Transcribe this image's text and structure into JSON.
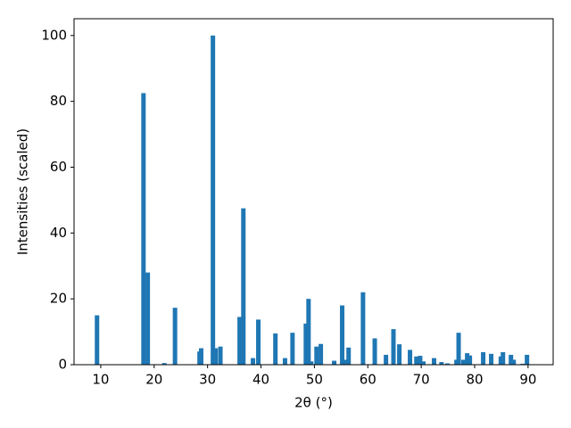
{
  "chart_data": {
    "type": "bar",
    "xlabel": "2θ (°)",
    "ylabel": "Intensities (scaled)",
    "color": "#1f77b4",
    "x": [
      9.3,
      18.0,
      18.8,
      21.9,
      23.9,
      28.5,
      28.8,
      31.0,
      31.5,
      32.4,
      36.0,
      36.7,
      38.5,
      39.5,
      42.7,
      44.5,
      45.9,
      48.4,
      48.9,
      49.4,
      50.4,
      51.2,
      53.7,
      55.2,
      55.7,
      56.4,
      59.1,
      61.3,
      63.4,
      64.8,
      65.9,
      67.9,
      69.1,
      69.8,
      70.4,
      72.4,
      73.8,
      74.9,
      76.6,
      77.0,
      77.9,
      78.6,
      79.1,
      81.6,
      83.1,
      84.9,
      85.3,
      86.8,
      87.3,
      89.0,
      89.8
    ],
    "values": [
      15,
      82.5,
      28,
      0.5,
      17.3,
      4,
      5,
      100,
      5,
      5.5,
      14.5,
      47.5,
      2,
      13.7,
      9.5,
      2,
      9.7,
      12.5,
      20,
      1,
      5.5,
      6.3,
      1.2,
      18,
      1.5,
      5.2,
      22,
      8,
      3,
      10.8,
      6.2,
      4.5,
      2.5,
      2.7,
      1,
      2,
      0.8,
      0.4,
      1.5,
      9.7,
      1.5,
      3.5,
      2.8,
      3.8,
      3.3,
      2.5,
      3.8,
      3,
      1.5,
      0.3,
      3
    ],
    "xlim": [
      5.0,
      94.7
    ],
    "ylim": [
      0,
      105.1
    ],
    "xticks": [
      10,
      20,
      30,
      40,
      50,
      60,
      70,
      80,
      90
    ],
    "yticks": [
      0,
      20,
      40,
      60,
      80,
      100
    ]
  }
}
